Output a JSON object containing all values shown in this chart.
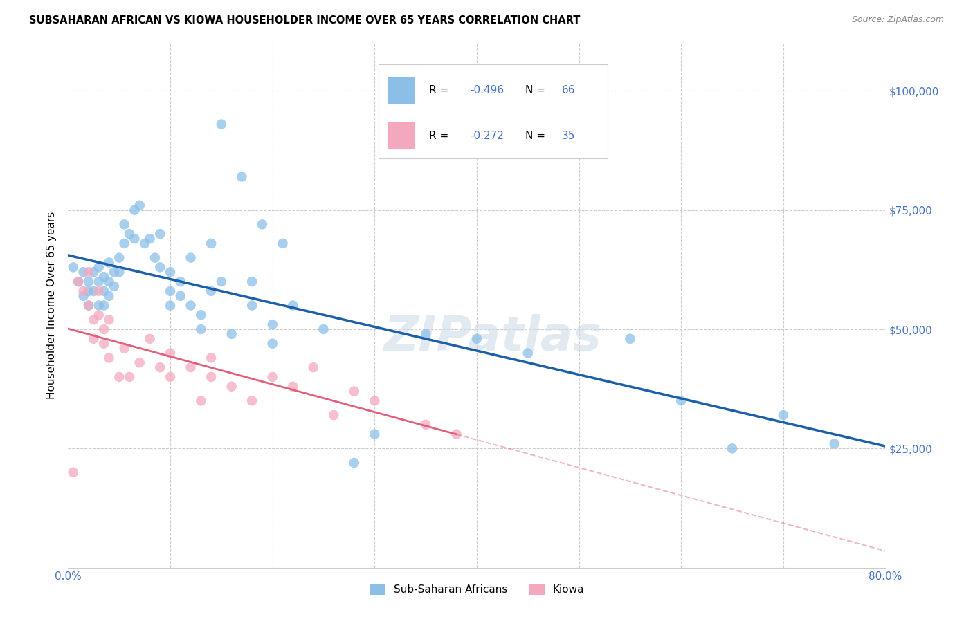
{
  "title": "SUBSAHARAN AFRICAN VS KIOWA HOUSEHOLDER INCOME OVER 65 YEARS CORRELATION CHART",
  "source": "Source: ZipAtlas.com",
  "ylabel": "Householder Income Over 65 years",
  "xlim": [
    0.0,
    0.8
  ],
  "ylim": [
    0,
    110000
  ],
  "legend_r1": "R = -0.496",
  "legend_n1": "N = 66",
  "legend_r2": "R = -0.272",
  "legend_n2": "N = 35",
  "legend_label1": "Sub-Saharan Africans",
  "legend_label2": "Kiowa",
  "color_blue": "#8bbfe8",
  "color_pink": "#f4a8be",
  "color_blue_line": "#1a5fa8",
  "color_pink_line": "#e0607a",
  "color_accent": "#4472c4",
  "watermark": "ZIPatlas",
  "blue_x": [
    0.005,
    0.01,
    0.015,
    0.015,
    0.02,
    0.02,
    0.02,
    0.025,
    0.025,
    0.03,
    0.03,
    0.03,
    0.035,
    0.035,
    0.035,
    0.04,
    0.04,
    0.04,
    0.045,
    0.045,
    0.05,
    0.05,
    0.055,
    0.055,
    0.06,
    0.065,
    0.065,
    0.07,
    0.075,
    0.08,
    0.085,
    0.09,
    0.09,
    0.1,
    0.1,
    0.1,
    0.11,
    0.11,
    0.12,
    0.12,
    0.13,
    0.13,
    0.14,
    0.14,
    0.15,
    0.15,
    0.16,
    0.17,
    0.18,
    0.18,
    0.19,
    0.2,
    0.2,
    0.21,
    0.22,
    0.25,
    0.28,
    0.3,
    0.35,
    0.4,
    0.45,
    0.55,
    0.6,
    0.65,
    0.7,
    0.75
  ],
  "blue_y": [
    63000,
    60000,
    57000,
    62000,
    55000,
    60000,
    58000,
    62000,
    58000,
    60000,
    55000,
    63000,
    61000,
    58000,
    55000,
    64000,
    60000,
    57000,
    62000,
    59000,
    65000,
    62000,
    68000,
    72000,
    70000,
    75000,
    69000,
    76000,
    68000,
    69000,
    65000,
    70000,
    63000,
    55000,
    58000,
    62000,
    60000,
    57000,
    65000,
    55000,
    53000,
    50000,
    68000,
    58000,
    93000,
    60000,
    49000,
    82000,
    60000,
    55000,
    72000,
    51000,
    47000,
    68000,
    55000,
    50000,
    22000,
    28000,
    49000,
    48000,
    45000,
    48000,
    35000,
    25000,
    32000,
    26000
  ],
  "pink_x": [
    0.005,
    0.01,
    0.015,
    0.02,
    0.02,
    0.025,
    0.025,
    0.03,
    0.03,
    0.035,
    0.035,
    0.04,
    0.04,
    0.05,
    0.055,
    0.06,
    0.07,
    0.08,
    0.09,
    0.1,
    0.1,
    0.12,
    0.13,
    0.14,
    0.14,
    0.16,
    0.18,
    0.2,
    0.22,
    0.24,
    0.26,
    0.28,
    0.3,
    0.35,
    0.38
  ],
  "pink_y": [
    20000,
    60000,
    58000,
    62000,
    55000,
    52000,
    48000,
    58000,
    53000,
    50000,
    47000,
    52000,
    44000,
    40000,
    46000,
    40000,
    43000,
    48000,
    42000,
    40000,
    45000,
    42000,
    35000,
    40000,
    44000,
    38000,
    35000,
    40000,
    38000,
    42000,
    32000,
    37000,
    35000,
    30000,
    28000
  ],
  "grid_color": "#cccccc",
  "tick_color": "#4472c4"
}
